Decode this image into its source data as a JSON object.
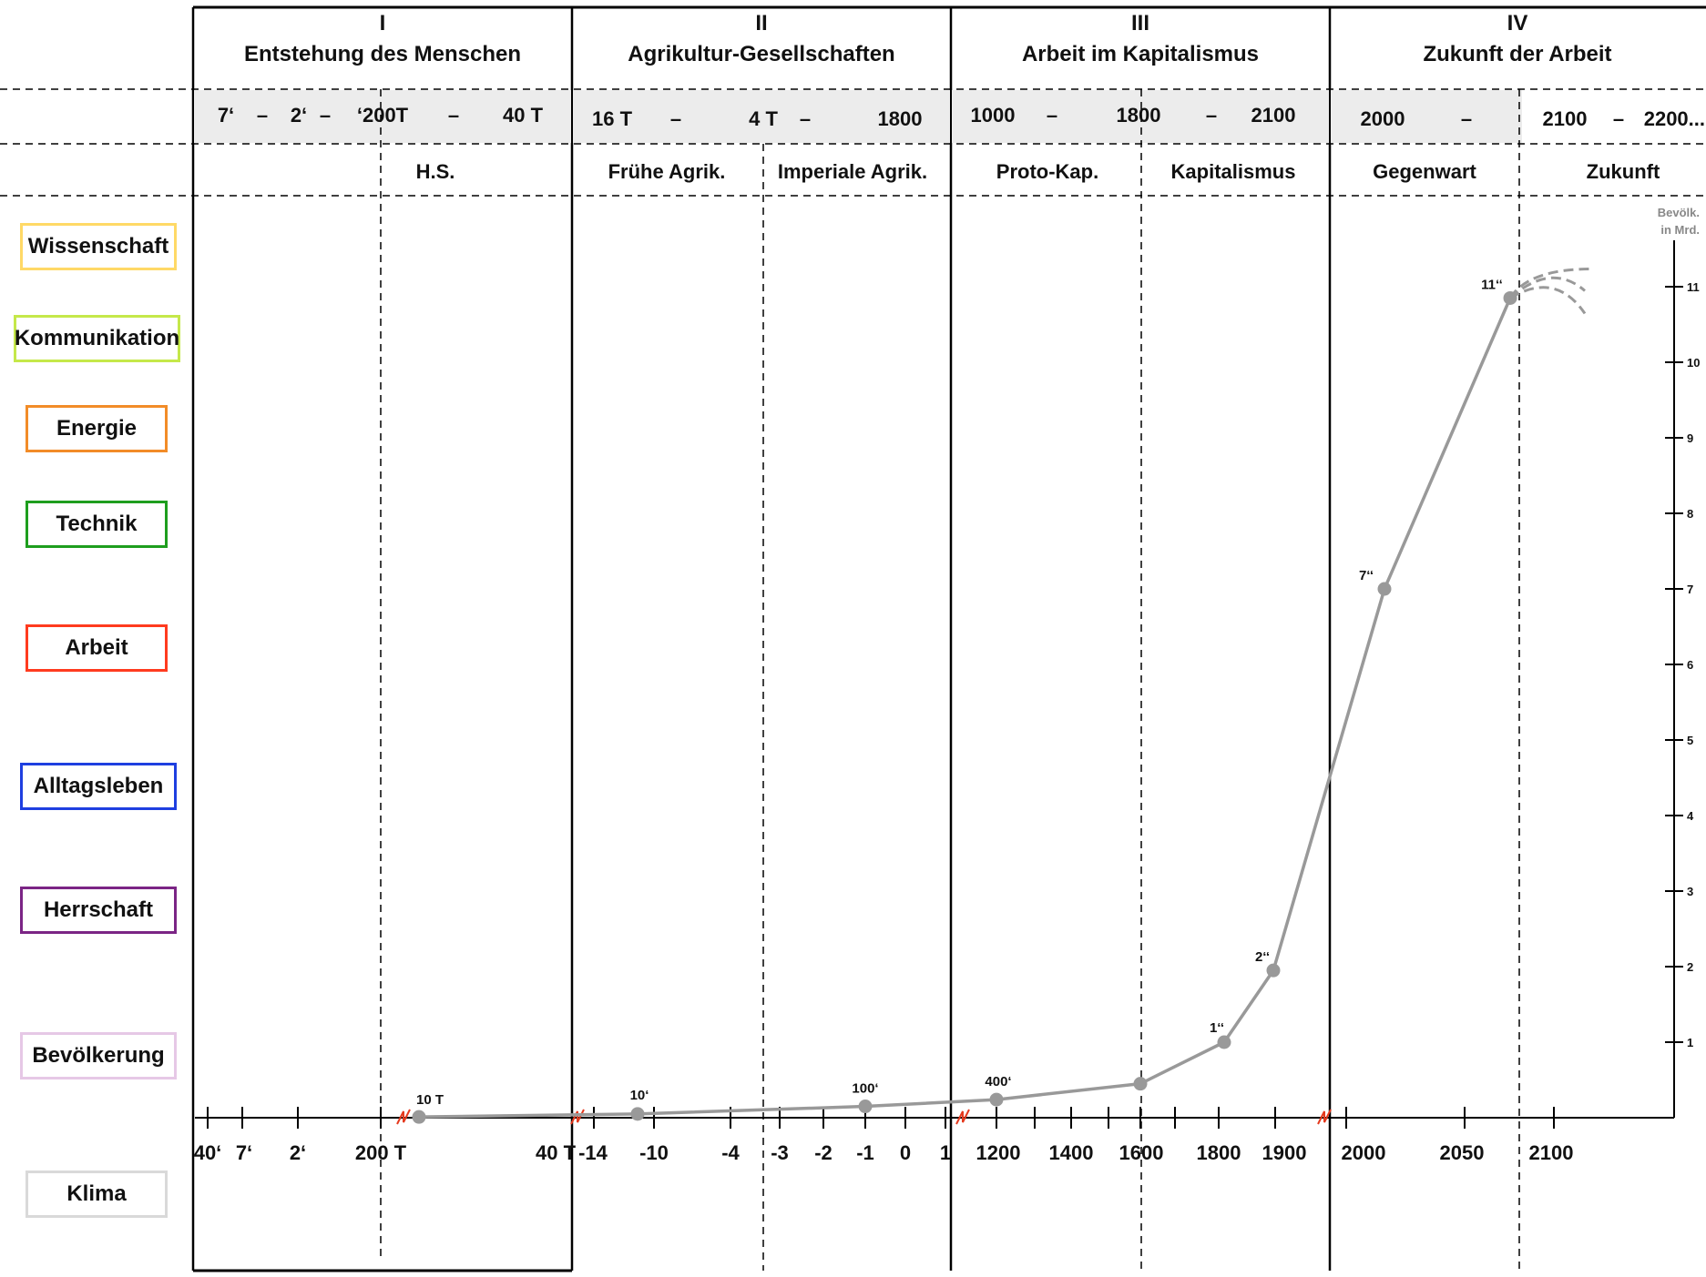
{
  "periods": [
    {
      "numeral": "I",
      "title": "Entstehung des Menschen"
    },
    {
      "numeral": "II",
      "title": "Agrikultur-Gesellschaften"
    },
    {
      "numeral": "III",
      "title": "Arbeit im Kapitalismus"
    },
    {
      "numeral": "IV",
      "title": "Zukunft der Arbeit"
    }
  ],
  "date_row": [
    {
      "text": "7‘"
    },
    {
      "text": "–"
    },
    {
      "text": "2‘"
    },
    {
      "text": "–"
    },
    {
      "text": "‘200T"
    },
    {
      "text": "–"
    },
    {
      "text": "40 T"
    },
    {
      "text": "16 T"
    },
    {
      "text": "–"
    },
    {
      "text": "4 T"
    },
    {
      "text": "–"
    },
    {
      "text": "1800"
    },
    {
      "text": "1000"
    },
    {
      "text": "–"
    },
    {
      "text": "1800"
    },
    {
      "text": "–"
    },
    {
      "text": "2100"
    },
    {
      "text": "2000"
    },
    {
      "text": "–"
    },
    {
      "text": "2100"
    },
    {
      "text": "–"
    },
    {
      "text": "2200..."
    }
  ],
  "subperiods": [
    "H.S.",
    "Frühe Agrik.",
    "Imperiale Agrik.",
    "Proto-Kap.",
    "Kapitalismus",
    "Gegenwart",
    "Zukunft"
  ],
  "categories": [
    {
      "label": "Wissenschaft",
      "color": "#FFD966"
    },
    {
      "label": "Kommunikation",
      "color": "#C5E84A"
    },
    {
      "label": "Energie",
      "color": "#F28C28"
    },
    {
      "label": "Technik",
      "color": "#1E9E1E"
    },
    {
      "label": "Arbeit",
      "color": "#FF3B1F"
    },
    {
      "label": "Alltagsleben",
      "color": "#1E3FE0"
    },
    {
      "label": "Herrschaft",
      "color": "#7B2585"
    },
    {
      "label": "Bevölkerung",
      "color": "#E6C8E6"
    },
    {
      "label": "Klima",
      "color": "#D9D9D9"
    }
  ],
  "colors": {
    "curve": "#999999",
    "projection": "#999999",
    "date_row_bg": "#ECECEC",
    "break_mark": "#E53A1E"
  },
  "chart_data": {
    "type": "line",
    "title": "",
    "ylabel": "Bevölk. in Mrd.",
    "ylim": [
      0,
      11
    ],
    "yticks": [
      "1",
      "2",
      "3",
      "4",
      "5",
      "6",
      "7",
      "8",
      "9",
      "10",
      "11"
    ],
    "xtick_labels": [
      "40‘",
      "7‘",
      "2‘",
      "200 T",
      "40 T",
      "-14",
      "-10",
      "-4",
      "-3",
      "-2",
      "-1",
      "0",
      "1",
      "1200",
      "1400",
      "1600",
      "1800",
      "1900",
      "2000",
      "2050",
      "2100"
    ],
    "series": [
      {
        "points": [
          {
            "x": "10 T",
            "y": 0.01,
            "label": "10 T"
          },
          {
            "x": "-10",
            "y": 0.05,
            "label": "10‘"
          },
          {
            "x": "-1",
            "y": 0.15,
            "label": "100‘"
          },
          {
            "x": "1200",
            "y": 0.24,
            "label": "400‘"
          },
          {
            "x": "1600",
            "y": 0.45,
            "label": ""
          },
          {
            "x": "1800",
            "y": 1.0,
            "label": "1‘‘"
          },
          {
            "x": "1900",
            "y": 1.95,
            "label": "2‘‘"
          },
          {
            "x": "2010",
            "y": 7.0,
            "label": "7‘‘"
          },
          {
            "x": "2075",
            "y": 10.85,
            "label": "11‘‘"
          }
        ]
      }
    ]
  }
}
